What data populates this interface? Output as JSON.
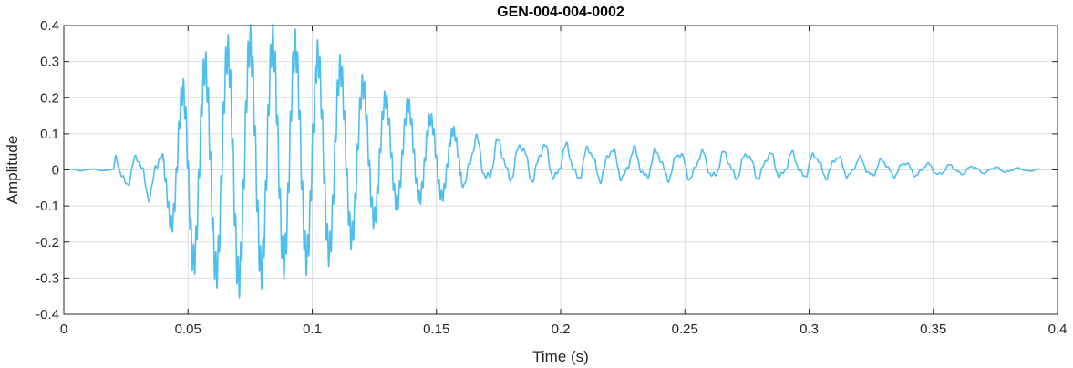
{
  "chart_data": {
    "type": "line",
    "title": "GEN-004-004-0002",
    "xlabel": "Time (s)",
    "ylabel": "Amplitude",
    "xlim": [
      0,
      0.4
    ],
    "ylim": [
      -0.4,
      0.4
    ],
    "grid": true,
    "xticks": [
      0,
      0.05,
      0.1,
      0.15,
      0.2,
      0.25,
      0.3,
      0.35,
      0.4
    ],
    "xtick_labels": [
      "0",
      "0.05",
      "0.1",
      "0.15",
      "0.2",
      "0.25",
      "0.3",
      "0.35",
      "0.4"
    ],
    "yticks": [
      -0.4,
      -0.3,
      -0.2,
      -0.1,
      0,
      0.1,
      0.2,
      0.3,
      0.4
    ],
    "ytick_labels": [
      "-0.4",
      "-0.3",
      "-0.2",
      "-0.1",
      "0",
      "0.1",
      "0.2",
      "0.3",
      "0.4"
    ],
    "line_color": "#4dbeee",
    "waveform_envelope": {
      "t": [
        0,
        0.02,
        0.021,
        0.03,
        0.04,
        0.045,
        0.05,
        0.06,
        0.07,
        0.08,
        0.09,
        0.1,
        0.11,
        0.12,
        0.13,
        0.14,
        0.15,
        0.16,
        0.17,
        0.18,
        0.2,
        0.25,
        0.3,
        0.35,
        0.393
      ],
      "max": [
        0.003,
        0.003,
        0.05,
        0.05,
        0.07,
        0.2,
        0.3,
        0.35,
        0.4,
        0.41,
        0.4,
        0.37,
        0.33,
        0.27,
        0.22,
        0.2,
        0.15,
        0.11,
        0.1,
        0.09,
        0.08,
        0.06,
        0.055,
        0.02,
        0.003
      ],
      "min": [
        -0.003,
        -0.003,
        -0.05,
        -0.06,
        -0.13,
        -0.2,
        -0.29,
        -0.33,
        -0.36,
        -0.33,
        -0.3,
        -0.29,
        -0.26,
        -0.2,
        -0.13,
        -0.1,
        -0.1,
        -0.06,
        -0.05,
        -0.04,
        -0.04,
        -0.035,
        -0.03,
        -0.02,
        -0.003
      ]
    }
  }
}
